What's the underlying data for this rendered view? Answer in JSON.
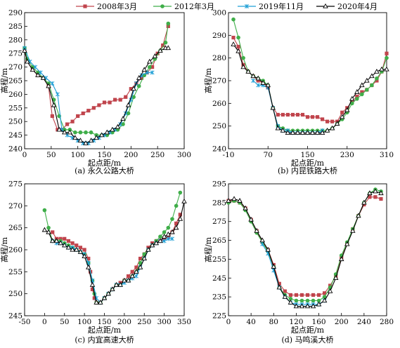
{
  "legend": [
    {
      "name": "2008年3月",
      "color": "#c0444c",
      "marker": "square"
    },
    {
      "name": "2012年3月",
      "color": "#3fae49",
      "marker": "circle"
    },
    {
      "name": "2019年11月",
      "color": "#1f9fd6",
      "marker": "cross"
    },
    {
      "name": "2020年4月",
      "color": "#000000",
      "marker": "triangle"
    }
  ],
  "chart_data": [
    {
      "type": "line",
      "caption": "(a) 永久公路大桥",
      "xlabel": "起点距/m",
      "ylabel": "高程/m",
      "xlim": [
        0,
        300
      ],
      "ylim": [
        240,
        290
      ],
      "xticks": [
        0,
        50,
        100,
        150,
        200,
        250,
        300
      ],
      "yticks": [
        240,
        245,
        250,
        255,
        260,
        265,
        270,
        275,
        280,
        285,
        290
      ],
      "series": [
        {
          "name": "2008年3月",
          "x": [
            0,
            5,
            15,
            25,
            35,
            45,
            52,
            62,
            70,
            80,
            90,
            100,
            110,
            120,
            130,
            140,
            150,
            160,
            170,
            180,
            190,
            200,
            210,
            220,
            230,
            240,
            250,
            260,
            270
          ],
          "y": [
            276,
            272,
            269,
            267,
            266,
            263,
            252,
            247,
            247,
            249,
            250,
            252,
            253,
            254,
            255,
            256,
            257,
            257,
            258,
            258,
            259,
            262,
            264,
            266,
            268,
            270,
            275,
            278,
            285
          ]
        },
        {
          "name": "2012年3月",
          "x": [
            0,
            5,
            15,
            25,
            35,
            45,
            55,
            65,
            75,
            85,
            95,
            105,
            115,
            125,
            135,
            145,
            155,
            165,
            175,
            185,
            195,
            205,
            215,
            225,
            235,
            245,
            255,
            265,
            270
          ],
          "y": [
            277,
            273,
            270,
            268,
            266,
            264,
            258,
            252,
            247,
            247,
            246,
            246,
            246,
            246,
            245,
            245,
            245,
            246,
            247,
            249,
            253,
            259,
            263,
            267,
            270,
            273,
            276,
            279,
            286
          ]
        },
        {
          "name": "2019年11月",
          "x": [
            0,
            10,
            20,
            30,
            40,
            52,
            62,
            70,
            80,
            90,
            100,
            110,
            120,
            130,
            140,
            150,
            160,
            170,
            180,
            190,
            200,
            210,
            220,
            230,
            240
          ],
          "y": [
            277,
            272,
            270,
            268,
            266,
            264,
            260,
            247,
            245,
            244,
            243,
            242,
            242,
            243,
            244,
            245,
            246,
            247,
            249,
            253,
            258,
            264,
            267,
            268,
            268
          ]
        },
        {
          "name": "2020年4月",
          "x": [
            0,
            5,
            15,
            25,
            35,
            45,
            55,
            65,
            75,
            85,
            95,
            105,
            115,
            125,
            135,
            145,
            155,
            165,
            175,
            185,
            195,
            205,
            215,
            225,
            235,
            245,
            255,
            265,
            270
          ],
          "y": [
            276,
            272,
            269,
            267,
            266,
            263,
            256,
            247,
            246,
            246,
            244,
            243,
            242,
            243,
            244,
            245,
            246,
            247,
            248,
            251,
            256,
            262,
            266,
            269,
            272,
            274,
            276,
            277,
            277
          ]
        }
      ]
    },
    {
      "type": "line",
      "caption": "(b) 内昆铁路大桥",
      "xlabel": "起点距/m",
      "ylabel": "高程/m",
      "xlim": [
        -10,
        310
      ],
      "ylim": [
        240,
        300
      ],
      "xticks": [
        -10,
        70,
        150,
        230,
        310
      ],
      "yticks": [
        240,
        250,
        260,
        270,
        280,
        290,
        300
      ],
      "series": [
        {
          "name": "2008年3月",
          "x": [
            0,
            10,
            20,
            30,
            40,
            50,
            60,
            70,
            80,
            90,
            100,
            110,
            120,
            130,
            140,
            150,
            160,
            170,
            180,
            190,
            200,
            210,
            220,
            230,
            240,
            250,
            260,
            270,
            280,
            290,
            300,
            310
          ],
          "y": [
            289,
            285,
            277,
            274,
            272,
            270,
            269,
            267,
            258,
            255,
            255,
            255,
            255,
            255,
            255,
            254,
            254,
            254,
            253,
            252,
            252,
            252,
            256,
            258,
            261,
            263,
            265,
            266,
            268,
            270,
            274,
            282
          ]
        },
        {
          "name": "2012年3月",
          "x": [
            0,
            10,
            20,
            30,
            40,
            50,
            60,
            70,
            80,
            90,
            100,
            110,
            120,
            130,
            140,
            150,
            160,
            170,
            180,
            190,
            200,
            210,
            220,
            230,
            240,
            250,
            260,
            270,
            280,
            290,
            300,
            310
          ],
          "y": [
            297,
            289,
            280,
            274,
            272,
            271,
            270,
            268,
            258,
            250,
            249,
            248,
            248,
            248,
            248,
            248,
            248,
            248,
            248,
            248,
            249,
            251,
            253,
            256,
            260,
            262,
            264,
            266,
            268,
            271,
            274,
            280
          ]
        },
        {
          "name": "2019年11月",
          "x": [
            40,
            50,
            60,
            70,
            80,
            90,
            100,
            110,
            120,
            130,
            140,
            150,
            160,
            170,
            180
          ],
          "y": [
            270,
            268,
            268,
            267,
            258,
            250,
            248,
            248,
            247,
            247,
            247,
            247,
            247,
            247,
            248
          ]
        },
        {
          "name": "2020年4月",
          "x": [
            0,
            10,
            20,
            30,
            40,
            50,
            60,
            70,
            80,
            90,
            100,
            110,
            120,
            130,
            140,
            150,
            160,
            170,
            180,
            190,
            200,
            210,
            220,
            230,
            240,
            250,
            260,
            270,
            280,
            290,
            300,
            310
          ],
          "y": [
            286,
            283,
            276,
            274,
            272,
            271,
            269,
            268,
            258,
            249,
            248,
            247,
            247,
            247,
            247,
            247,
            247,
            247,
            247,
            248,
            249,
            251,
            254,
            257,
            262,
            265,
            268,
            270,
            272,
            274,
            275,
            275
          ]
        }
      ]
    },
    {
      "type": "line",
      "caption": "(c) 内宜高速大桥",
      "xlabel": "起点距/m",
      "ylabel": "高程/m",
      "xlim": [
        -50,
        350
      ],
      "ylim": [
        245,
        275
      ],
      "xticks": [
        -50,
        0,
        50,
        100,
        150,
        200,
        250,
        300,
        350
      ],
      "yticks": [
        245,
        250,
        255,
        260,
        265,
        270,
        275
      ],
      "series": [
        {
          "name": "2008年3月",
          "x": [
            20,
            30,
            40,
            50,
            60,
            70,
            80,
            90,
            100,
            110,
            115,
            120,
            125,
            130,
            140,
            150,
            160,
            170,
            180,
            190,
            200,
            210,
            220,
            230,
            240,
            250,
            260,
            270,
            280,
            290,
            300,
            310,
            320,
            330,
            340
          ],
          "y": [
            264,
            262.5,
            262.5,
            262.5,
            262,
            261.5,
            261,
            260.5,
            260,
            258,
            255,
            251,
            249,
            248,
            248,
            249,
            250,
            251,
            252,
            252.5,
            253,
            254,
            255,
            256,
            258,
            259,
            260.5,
            261.5,
            262,
            262,
            262.5,
            263,
            264,
            266,
            268
          ]
        },
        {
          "name": "2012年3月",
          "x": [
            0,
            10,
            20,
            30,
            40,
            50,
            60,
            70,
            80,
            90,
            100,
            110,
            120,
            125,
            130,
            140,
            150,
            160,
            170,
            180,
            190,
            200,
            210,
            220,
            230,
            240,
            250,
            260,
            270,
            280,
            290,
            300,
            310,
            320,
            330,
            340
          ],
          "y": [
            269,
            265,
            262,
            262,
            262,
            261.5,
            261,
            260.5,
            260,
            259.5,
            259,
            257,
            253,
            250,
            248,
            248,
            249,
            250,
            251,
            252,
            252,
            253,
            253,
            254,
            255,
            257,
            259,
            260,
            261,
            262,
            263,
            264,
            265,
            267,
            270,
            273
          ]
        },
        {
          "name": "2019年11月",
          "x": [
            20,
            30,
            40,
            50,
            60,
            70,
            80,
            90,
            100,
            110,
            120,
            130,
            140,
            150,
            160,
            170,
            180,
            190,
            200,
            210,
            220,
            230,
            240,
            250,
            260,
            270,
            280,
            290,
            300,
            310,
            320
          ],
          "y": [
            262,
            261.5,
            261.5,
            261,
            260.5,
            260.5,
            260,
            259.5,
            259,
            257,
            253,
            249,
            248,
            249,
            250,
            251,
            252,
            252,
            252.5,
            253,
            253.5,
            254,
            256,
            258,
            260,
            261,
            261.5,
            262,
            262,
            262.5,
            262.5
          ]
        },
        {
          "name": "2020年4月",
          "x": [
            0,
            10,
            20,
            30,
            40,
            50,
            60,
            70,
            80,
            90,
            100,
            110,
            120,
            130,
            140,
            150,
            160,
            170,
            180,
            190,
            200,
            210,
            220,
            230,
            240,
            250,
            260,
            270,
            280,
            290,
            300,
            310,
            320,
            330,
            340,
            350
          ],
          "y": [
            264.5,
            264,
            262,
            262,
            261.5,
            261,
            260.5,
            260,
            260,
            259.5,
            258.5,
            256,
            252,
            248,
            248,
            249,
            250,
            251,
            252,
            252,
            253,
            253,
            254,
            255,
            256,
            258,
            260,
            261,
            261.5,
            262,
            263,
            263.5,
            264,
            265,
            267,
            271
          ]
        }
      ]
    },
    {
      "type": "line",
      "caption": "(d) 马鸣溪大桥",
      "xlabel": "起点距/m",
      "ylabel": "高程/m",
      "xlim": [
        0,
        280
      ],
      "ylim": [
        225,
        295
      ],
      "xticks": [
        0,
        40,
        80,
        120,
        160,
        200,
        240,
        280
      ],
      "yticks": [
        225,
        235,
        245,
        255,
        265,
        275,
        285,
        295
      ],
      "series": [
        {
          "name": "2008年3月",
          "x": [
            0,
            10,
            20,
            30,
            40,
            50,
            60,
            70,
            80,
            90,
            100,
            110,
            120,
            130,
            140,
            150,
            160,
            170,
            180,
            190,
            200,
            210,
            220,
            230,
            240,
            250,
            260,
            270
          ],
          "y": [
            286,
            286,
            285,
            282,
            276,
            270,
            264,
            260,
            252,
            242,
            238,
            236,
            236,
            236,
            236,
            236,
            236,
            237,
            241,
            246,
            256,
            263,
            271,
            278,
            284,
            288,
            288,
            287
          ]
        },
        {
          "name": "2012年3月",
          "x": [
            0,
            10,
            20,
            30,
            40,
            50,
            60,
            70,
            80,
            90,
            100,
            110,
            120,
            130,
            140,
            150,
            160,
            170,
            180,
            190,
            200,
            210,
            220,
            230,
            240,
            250,
            260,
            270
          ],
          "y": [
            285,
            286,
            285,
            281,
            275,
            269,
            264,
            259,
            251,
            240,
            236,
            234,
            233,
            233,
            233,
            233,
            233,
            235,
            240,
            247,
            257,
            264,
            271,
            278,
            285,
            290,
            292,
            291
          ]
        },
        {
          "name": "2019年11月",
          "x": [
            60,
            70,
            80,
            90,
            100,
            110,
            120,
            130,
            140,
            150,
            160,
            170
          ],
          "y": [
            263,
            258,
            249,
            240,
            235,
            232,
            231,
            231,
            231,
            231,
            231,
            233
          ]
        },
        {
          "name": "2020年4月",
          "x": [
            0,
            10,
            20,
            30,
            40,
            50,
            60,
            70,
            80,
            90,
            100,
            110,
            120,
            130,
            140,
            150,
            160,
            170,
            180,
            190,
            200,
            210,
            220,
            230,
            240,
            250,
            260,
            270
          ],
          "y": [
            286,
            287,
            286,
            282,
            276,
            270,
            265,
            260,
            251,
            240,
            235,
            232,
            230,
            230,
            230,
            230,
            231,
            233,
            238,
            245,
            255,
            263,
            270,
            278,
            285,
            290,
            291,
            290
          ]
        }
      ]
    }
  ]
}
